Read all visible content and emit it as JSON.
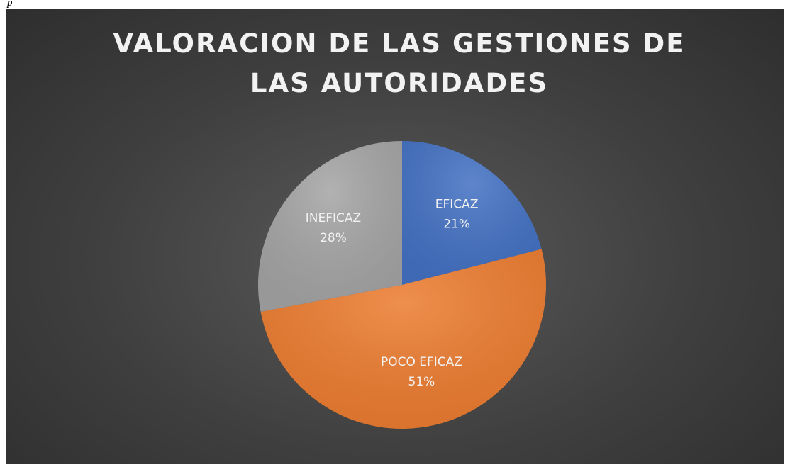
{
  "caption": "p",
  "chart_data": {
    "type": "pie",
    "title": "VALORACION DE LAS GESTIONES DE LAS AUTORIDADES",
    "categories": [
      "EFICAZ",
      "POCO EFICAZ",
      "INEFICAZ"
    ],
    "values": [
      21,
      51,
      28
    ],
    "value_labels": [
      "21%",
      "51%",
      "28%"
    ],
    "colors": [
      "#4472c4",
      "#ed7d31",
      "#a5a5a5"
    ]
  }
}
